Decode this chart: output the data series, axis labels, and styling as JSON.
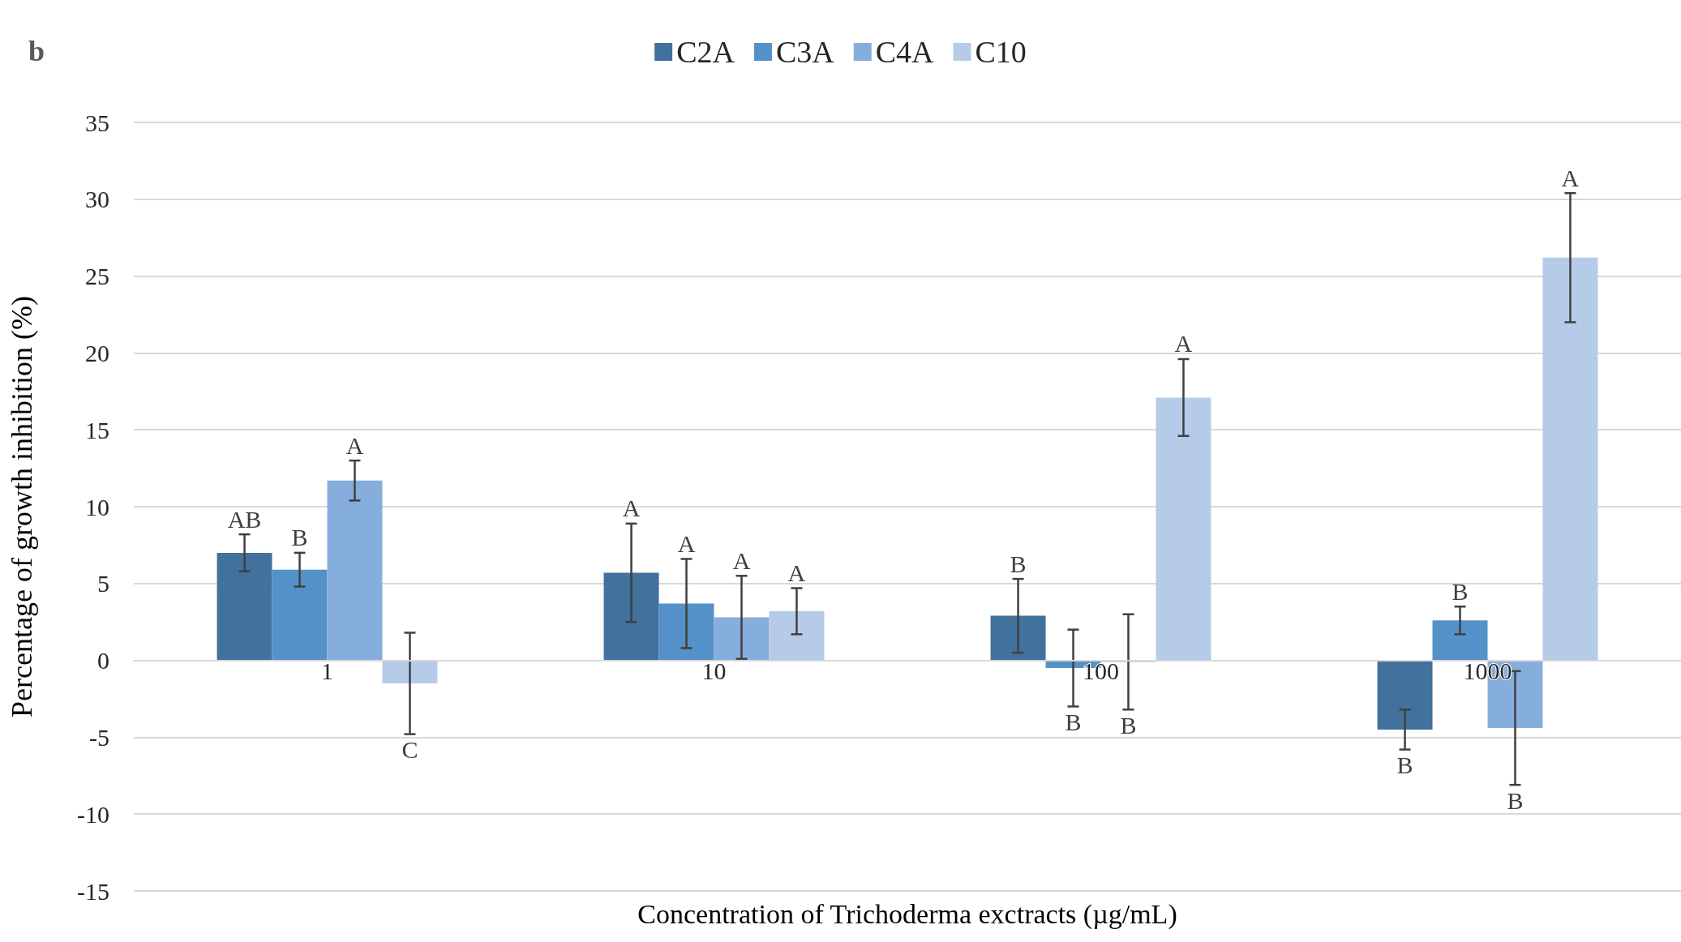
{
  "chart_data": {
    "type": "bar",
    "title": "b",
    "xlabel": "Concentration of Trichoderma exctracts (µg/mL)",
    "ylabel": "Percentage of growth inhibition (%)",
    "categories": [
      "1",
      "10",
      "100",
      "1000"
    ],
    "series": [
      {
        "name": "C2A",
        "color": "#41719c",
        "values": [
          7.0,
          5.7,
          2.9,
          -4.5
        ],
        "errors": [
          1.2,
          3.2,
          2.4,
          1.3
        ],
        "value_labels": [
          "AB",
          "A",
          "B",
          "B"
        ]
      },
      {
        "name": "C3A",
        "color": "#5591c9",
        "values": [
          5.9,
          3.7,
          -0.5,
          2.6
        ],
        "errors": [
          1.1,
          2.9,
          2.5,
          0.9
        ],
        "value_labels": [
          "B",
          "A",
          "B",
          "B"
        ]
      },
      {
        "name": "C4A",
        "color": "#86aedd",
        "values": [
          11.7,
          2.8,
          -0.1,
          -4.4
        ],
        "errors": [
          1.3,
          2.7,
          3.1,
          3.7
        ],
        "value_labels": [
          "A",
          "A",
          "B",
          "B"
        ]
      },
      {
        "name": "C10",
        "color": "#b5cbe8",
        "values": [
          -1.5,
          3.2,
          17.1,
          26.2
        ],
        "errors": [
          3.3,
          1.5,
          2.5,
          4.2
        ],
        "value_labels": [
          "C",
          "A",
          "A",
          "A"
        ]
      }
    ],
    "ylim": [
      -15,
      35
    ],
    "yticks": [
      -15,
      -10,
      -5,
      0,
      5,
      10,
      15,
      20,
      25,
      30,
      35
    ],
    "grid": "y",
    "legend": "top"
  }
}
